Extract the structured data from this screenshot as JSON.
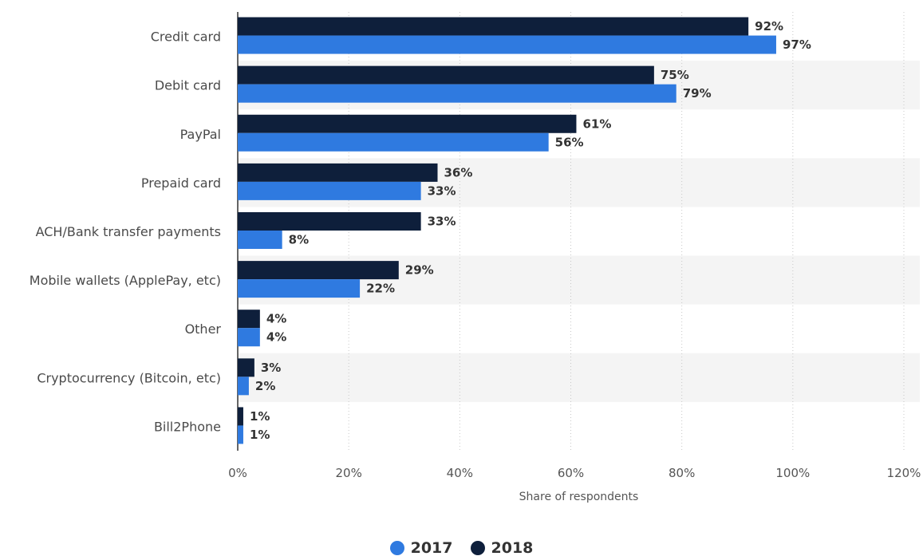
{
  "chart_data": {
    "type": "bar",
    "orientation": "horizontal",
    "categories": [
      "Credit card",
      "Debit card",
      "PayPal",
      "Prepaid card",
      "ACH/Bank transfer payments",
      "Mobile wallets (ApplePay, etc)",
      "Other",
      "Cryptocurrency (Bitcoin, etc)",
      "Bill2Phone"
    ],
    "series": [
      {
        "name": "2018",
        "color": "#0e1f3b",
        "values": [
          92,
          75,
          61,
          36,
          33,
          29,
          4,
          3,
          1
        ],
        "labels": [
          "92%",
          "75%",
          "61%",
          "36%",
          "33%",
          "29%",
          "4%",
          "3%",
          "1%"
        ]
      },
      {
        "name": "2017",
        "color": "#2f7ae0",
        "values": [
          97,
          79,
          56,
          33,
          8,
          22,
          4,
          2,
          1
        ],
        "labels": [
          "97%",
          "79%",
          "56%",
          "33%",
          "8%",
          "22%",
          "4%",
          "2%",
          "1%"
        ]
      }
    ],
    "xlabel": "Share of respondents",
    "ylabel": "",
    "xlim": [
      0,
      120
    ],
    "ticks": [
      0,
      20,
      40,
      60,
      80,
      100,
      120
    ],
    "tick_labels": [
      "0%",
      "20%",
      "40%",
      "60%",
      "80%",
      "100%",
      "120%"
    ],
    "grid": "vertical dotted",
    "legend_position": "bottom"
  },
  "legend": [
    {
      "name": "2017",
      "color": "#2f7ae0"
    },
    {
      "name": "2018",
      "color": "#0e1f3b"
    }
  ]
}
